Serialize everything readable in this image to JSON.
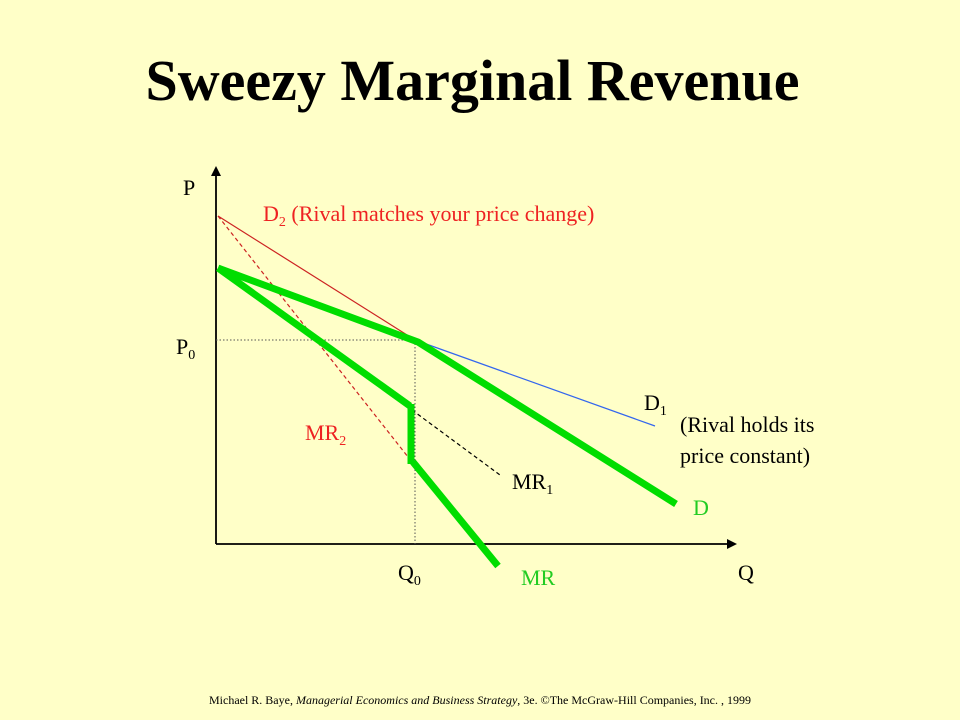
{
  "title": "Sweezy Marginal Revenue",
  "labels": {
    "p_axis": "P",
    "q_axis": "Q",
    "p0": "P",
    "p0_sub": "0",
    "q0": "Q",
    "q0_sub": "0",
    "d2": "D",
    "d2_sub": "2",
    "d2_note": " (Rival matches your price change)",
    "d1": "D",
    "d1_sub": "1",
    "d1_note_line1": "(Rival holds its",
    "d1_note_line2": "price constant)",
    "mr2": "MR",
    "mr2_sub": "2",
    "mr1": "MR",
    "mr1_sub": "1",
    "d": "D",
    "mr": "MR"
  },
  "colors": {
    "background": "#FFFFC8",
    "kinked_curve": "#00DD00",
    "d2_curve": "#CC2222",
    "d1_curve": "#3366EE",
    "mr1_curve": "#000000",
    "red_label": "#EE2222",
    "green_label": "#22CC22"
  },
  "footer": {
    "author": "Michael R. Baye,",
    "book": "Managerial Economics and Business Strategy",
    "rest": ", 3e. ©The McGraw-Hill Companies, Inc. , 1999"
  }
}
